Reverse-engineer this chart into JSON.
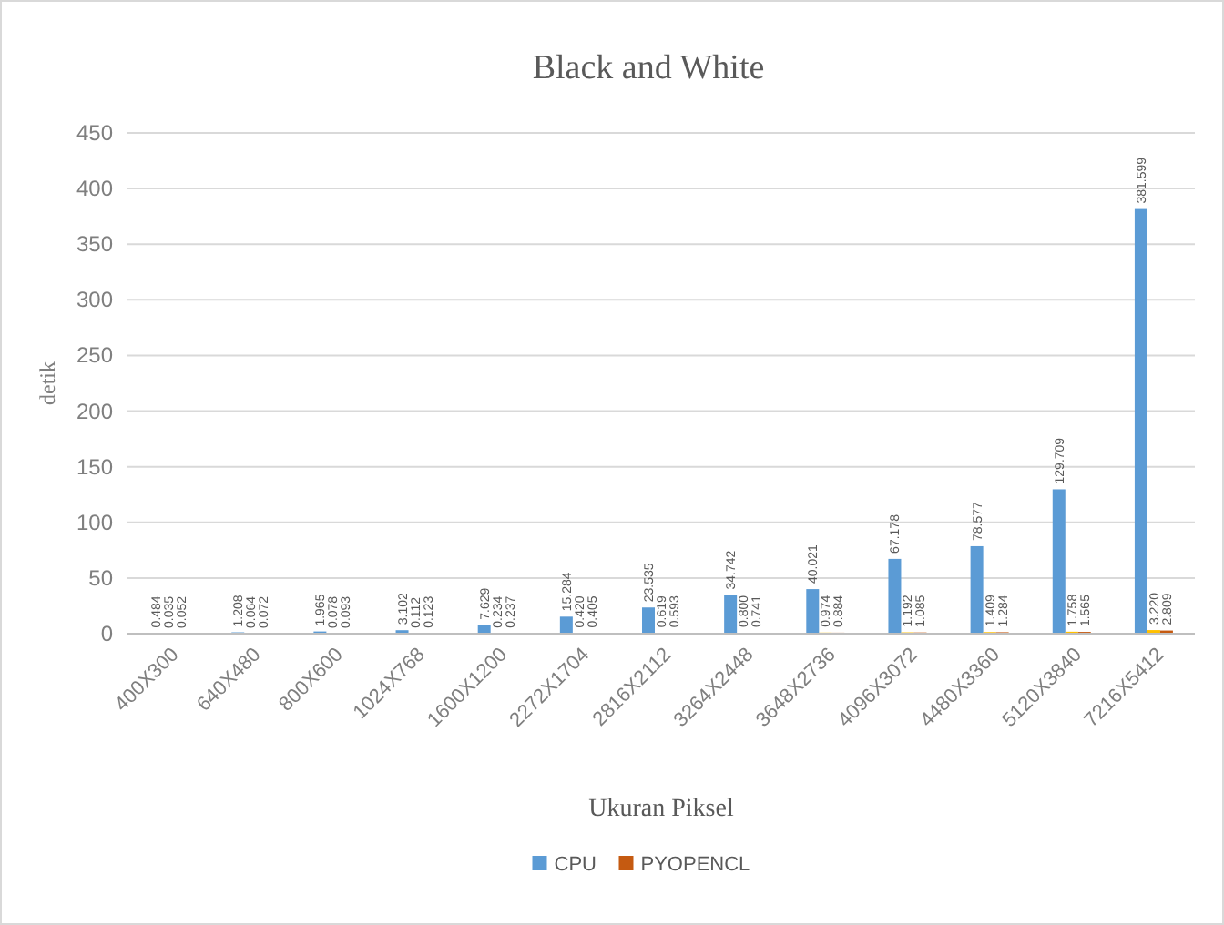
{
  "chart_data": {
    "type": "bar",
    "title": "Black and White",
    "xlabel": "Ukuran Piksel",
    "ylabel": "detik",
    "categories": [
      "400X300",
      "640X480",
      "800X600",
      "1024X768",
      "1600X1200",
      "2272X1704",
      "2816X2112",
      "3264X2448",
      "3648X2736",
      "4096X3072",
      "4480X3360",
      "5120X3840",
      "7216X5412"
    ],
    "series": [
      {
        "name": "CPU",
        "color": "#5b9bd5",
        "values": [
          0.484,
          1.208,
          1.965,
          3.102,
          7.629,
          15.284,
          23.535,
          34.742,
          40.021,
          67.178,
          78.577,
          129.709,
          381.599
        ],
        "value_labels": [
          "0.484",
          "1.208",
          "1.965",
          "3.102",
          "7.629",
          "15.284",
          "23.535",
          "34.742",
          "40.021",
          "67.178",
          "78.577",
          "129.709",
          "381.599"
        ]
      },
      {
        "color": "#ffc000",
        "values": [
          0.035,
          0.064,
          0.078,
          0.112,
          0.234,
          0.42,
          0.619,
          0.8,
          0.974,
          1.192,
          1.409,
          1.758,
          3.22
        ],
        "value_labels": [
          "0.035",
          "0.064",
          "0.078",
          "0.112",
          "0.234",
          "0.420",
          "0.619",
          "0.800",
          "0.974",
          "1.192",
          "1.409",
          "1.758",
          "3.220"
        ]
      },
      {
        "name": "PYOPENCL",
        "color": "#c55a11",
        "values": [
          0.052,
          0.072,
          0.093,
          0.123,
          0.237,
          0.405,
          0.593,
          0.741,
          0.884,
          1.085,
          1.284,
          1.565,
          2.809
        ],
        "value_labels": [
          "0.052",
          "0.072",
          "0.093",
          "0.123",
          "0.237",
          "0.405",
          "0.593",
          "0.741",
          "0.884",
          "1.085",
          "1.284",
          "1.565",
          "2.809"
        ]
      }
    ],
    "ylim": [
      0,
      450
    ],
    "yticks": [
      0,
      50,
      100,
      150,
      200,
      250,
      300,
      350,
      400,
      450
    ],
    "grid": "y",
    "legend": "bottom"
  }
}
